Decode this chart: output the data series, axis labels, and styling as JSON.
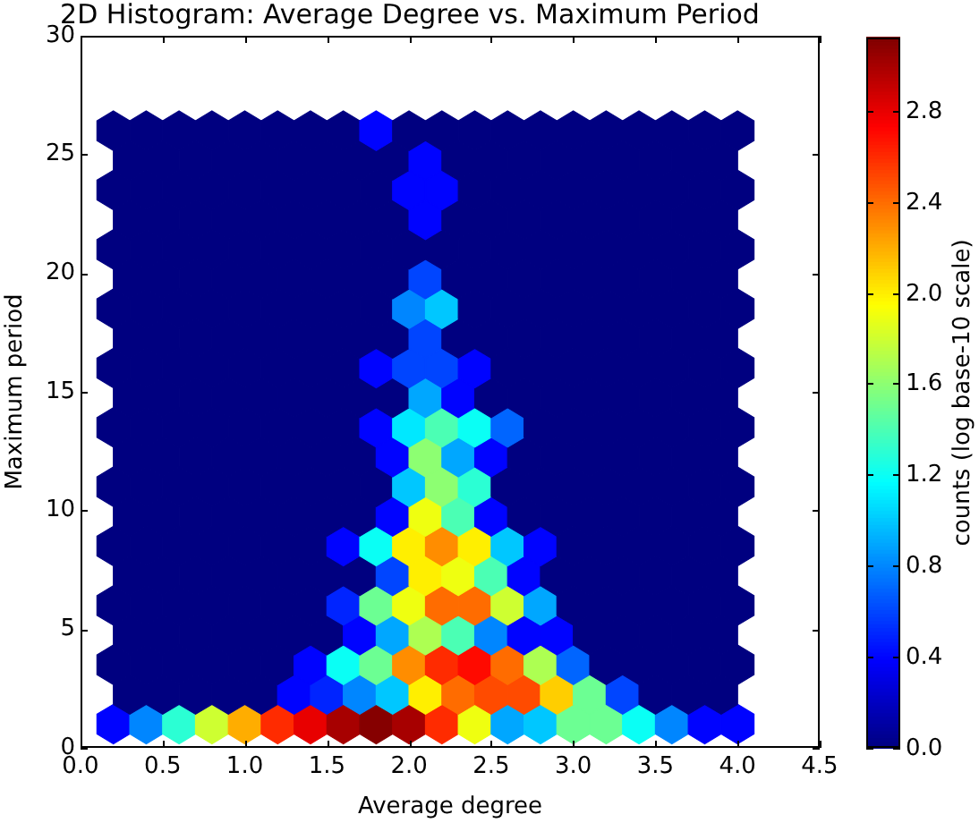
{
  "chart_data": {
    "type": "scatter",
    "title": "2D Histogram: Average Degree vs. Maximum Period",
    "xlabel": "Average degree",
    "ylabel": "Maximum period",
    "clabel": "counts (log base-10 scale)",
    "xlim": [
      0,
      4.5
    ],
    "xticks": [
      {
        "value": 0,
        "label": "0.0"
      },
      {
        "value": 0.5,
        "label": "0.5"
      },
      {
        "value": 1,
        "label": "1.0"
      },
      {
        "value": 1.5,
        "label": "1.5"
      },
      {
        "value": 2,
        "label": "2.0"
      },
      {
        "value": 2.5,
        "label": "2.5"
      },
      {
        "value": 3,
        "label": "3.0"
      },
      {
        "value": 3.5,
        "label": "3.5"
      },
      {
        "value": 4,
        "label": "4.0"
      },
      {
        "value": 4.5,
        "label": "4.5"
      }
    ],
    "ylim": [
      0,
      30
    ],
    "yticks": [
      0,
      5,
      10,
      15,
      20,
      25,
      30
    ],
    "clim": [
      0,
      3.12
    ],
    "cticks": [
      {
        "value": 0,
        "label": "0.0"
      },
      {
        "value": 0.4,
        "label": "0.4"
      },
      {
        "value": 0.8,
        "label": "0.8"
      },
      {
        "value": 1.2,
        "label": "1.2"
      },
      {
        "value": 1.6,
        "label": "1.6"
      },
      {
        "value": 2,
        "label": "2.0"
      },
      {
        "value": 2.4,
        "label": "2.4"
      },
      {
        "value": 2.8,
        "label": "2.8"
      }
    ],
    "grid": false,
    "legend": false,
    "series": [
      {
        "x": [
          0.2,
          0.4,
          0.6,
          0.8,
          1.0,
          1.2,
          1.4,
          1.6,
          1.8,
          2.0,
          2.2,
          2.4,
          2.6,
          2.8,
          3.0,
          3.2,
          3.4,
          3.6,
          3.8,
          4.0
        ],
        "values": [
          1,
          1,
          1,
          1,
          1,
          1,
          1,
          1,
          1,
          1,
          1,
          1,
          1,
          1,
          1,
          1,
          1,
          1,
          1,
          1
        ],
        "cvalues": [
          0.4,
          0.8,
          1.3,
          1.8,
          2.2,
          2.6,
          2.8,
          3.0,
          3.1,
          3.0,
          2.6,
          1.9,
          0.9,
          1.0,
          1.5,
          1.5,
          1.2,
          0.8,
          0.4,
          0.4
        ],
        "colors": [
          "#0003ff",
          "#0086ff",
          "#2bffd4",
          "#ceff31",
          "#ffad00",
          "#ff2b00",
          "#e80000",
          "#a70000",
          "#860000",
          "#a70000",
          "#ff2b00",
          "#efff10",
          "#00a7ff",
          "#00c7ff",
          "#6cff93",
          "#6cff93",
          "#0afff5",
          "#0086ff",
          "#0003ff",
          "#0003ff"
        ]
      },
      {
        "x": [
          0.3,
          0.5,
          0.7,
          0.9,
          1.1,
          1.3,
          1.5,
          1.7,
          1.9,
          2.1,
          2.3,
          2.5,
          2.7,
          2.9,
          3.1,
          3.3,
          3.5,
          3.7,
          3.9
        ],
        "values": [
          2.25,
          2.25,
          2.25,
          2.25,
          2.25,
          2.25,
          2.25,
          2.25,
          2.25,
          2.25,
          2.25,
          2.25,
          2.25,
          2.25,
          2.25,
          2.25,
          2.25,
          2.25,
          2.25
        ],
        "cvalues": [
          0,
          0,
          0,
          0,
          0,
          0.4,
          0.5,
          0.8,
          1.0,
          2.0,
          2.4,
          2.5,
          2.5,
          2.1,
          1.5,
          0.6,
          0,
          0,
          0
        ],
        "colors": [
          "#000080",
          "#000080",
          "#000080",
          "#000080",
          "#000080",
          "#0003ff",
          "#0024ff",
          "#0086ff",
          "#00c7ff",
          "#ffef00",
          "#ff6c00",
          "#ff4b00",
          "#ff4b00",
          "#ffce00",
          "#6cff93",
          "#0045ff",
          "#000080",
          "#000080",
          "#000080"
        ]
      },
      {
        "x": [
          0.2,
          0.4,
          0.6,
          0.8,
          1.0,
          1.2,
          1.4,
          1.6,
          1.8,
          2.0,
          2.2,
          2.4,
          2.6,
          2.8,
          3.0,
          3.2,
          3.4,
          3.6,
          3.8,
          4.0
        ],
        "values": [
          3.5,
          3.5,
          3.5,
          3.5,
          3.5,
          3.5,
          3.5,
          3.5,
          3.5,
          3.5,
          3.5,
          3.5,
          3.5,
          3.5,
          3.5,
          3.5,
          3.5,
          3.5,
          3.5,
          3.5
        ],
        "cvalues": [
          0,
          0,
          0,
          0,
          0,
          0,
          0.4,
          1.2,
          1.5,
          2.3,
          2.6,
          2.7,
          2.4,
          1.7,
          0.7,
          0,
          0,
          0,
          0,
          0
        ],
        "colors": [
          "#000080",
          "#000080",
          "#000080",
          "#000080",
          "#000080",
          "#000080",
          "#0003ff",
          "#0afff5",
          "#6cff93",
          "#ff8d00",
          "#ff2b00",
          "#ff0a00",
          "#ff6c00",
          "#adff52",
          "#0065ff",
          "#000080",
          "#000080",
          "#000080",
          "#000080",
          "#000080"
        ]
      },
      {
        "x": [
          0.3,
          0.5,
          0.7,
          0.9,
          1.1,
          1.3,
          1.5,
          1.7,
          1.9,
          2.1,
          2.3,
          2.5,
          2.7,
          2.9,
          3.1,
          3.3,
          3.5,
          3.7,
          3.9
        ],
        "values": [
          4.75,
          4.75,
          4.75,
          4.75,
          4.75,
          4.75,
          4.75,
          4.75,
          4.75,
          4.75,
          4.75,
          4.75,
          4.75,
          4.75,
          4.75,
          4.75,
          4.75,
          4.75,
          4.75
        ],
        "cvalues": [
          0,
          0,
          0,
          0,
          0,
          0,
          0,
          0.4,
          0.9,
          1.7,
          1.4,
          0.8,
          0.4,
          0.4,
          0,
          0,
          0,
          0,
          0
        ],
        "colors": [
          "#000080",
          "#000080",
          "#000080",
          "#000080",
          "#000080",
          "#000080",
          "#000080",
          "#0003ff",
          "#00a7ff",
          "#adff52",
          "#4bffb4",
          "#0086ff",
          "#0003ff",
          "#0003ff",
          "#000080",
          "#000080",
          "#000080",
          "#000080",
          "#000080"
        ]
      },
      {
        "x": [
          0.2,
          0.4,
          0.6,
          0.8,
          1.0,
          1.2,
          1.4,
          1.6,
          1.8,
          2.0,
          2.2,
          2.4,
          2.6,
          2.8,
          3.0,
          3.2,
          3.4,
          3.6,
          3.8,
          4.0
        ],
        "values": [
          6,
          6,
          6,
          6,
          6,
          6,
          6,
          6,
          6,
          6,
          6,
          6,
          6,
          6,
          6,
          6,
          6,
          6,
          6,
          6
        ],
        "cvalues": [
          0,
          0,
          0,
          0,
          0,
          0,
          0,
          0.5,
          1.5,
          1.9,
          2.4,
          2.4,
          1.8,
          0.9,
          0,
          0,
          0,
          0,
          0,
          0
        ],
        "colors": [
          "#000080",
          "#000080",
          "#000080",
          "#000080",
          "#000080",
          "#000080",
          "#000080",
          "#0024ff",
          "#6cff93",
          "#efff10",
          "#ff6c00",
          "#ff6c00",
          "#ceff31",
          "#00a7ff",
          "#000080",
          "#000080",
          "#000080",
          "#000080",
          "#000080",
          "#000080"
        ]
      },
      {
        "x": [
          0.3,
          0.5,
          0.7,
          0.9,
          1.1,
          1.3,
          1.5,
          1.7,
          1.9,
          2.1,
          2.3,
          2.5,
          2.7,
          2.9,
          3.1,
          3.3,
          3.5,
          3.7,
          3.9
        ],
        "values": [
          7.25,
          7.25,
          7.25,
          7.25,
          7.25,
          7.25,
          7.25,
          7.25,
          7.25,
          7.25,
          7.25,
          7.25,
          7.25,
          7.25,
          7.25,
          7.25,
          7.25,
          7.25,
          7.25
        ],
        "cvalues": [
          0,
          0,
          0,
          0,
          0,
          0,
          0,
          0,
          0.6,
          2.0,
          1.9,
          1.4,
          0.4,
          0,
          0,
          0,
          0,
          0,
          0
        ],
        "colors": [
          "#000080",
          "#000080",
          "#000080",
          "#000080",
          "#000080",
          "#000080",
          "#000080",
          "#000080",
          "#0045ff",
          "#ffef00",
          "#efff10",
          "#4bffb4",
          "#0003ff",
          "#000080",
          "#000080",
          "#000080",
          "#000080",
          "#000080",
          "#000080"
        ]
      },
      {
        "x": [
          0.2,
          0.4,
          0.6,
          0.8,
          1.0,
          1.2,
          1.4,
          1.6,
          1.8,
          2.0,
          2.2,
          2.4,
          2.6,
          2.8,
          3.0,
          3.2,
          3.4,
          3.6,
          3.8,
          4.0
        ],
        "values": [
          8.5,
          8.5,
          8.5,
          8.5,
          8.5,
          8.5,
          8.5,
          8.5,
          8.5,
          8.5,
          8.5,
          8.5,
          8.5,
          8.5,
          8.5,
          8.5,
          8.5,
          8.5,
          8.5,
          8.5
        ],
        "cvalues": [
          0,
          0,
          0,
          0,
          0,
          0,
          0,
          0.4,
          1.2,
          2.0,
          2.3,
          2.0,
          1.0,
          0.4,
          0,
          0,
          0,
          0,
          0,
          0
        ],
        "colors": [
          "#000080",
          "#000080",
          "#000080",
          "#000080",
          "#000080",
          "#000080",
          "#000080",
          "#0003ff",
          "#0afff5",
          "#ffef00",
          "#ff8d00",
          "#ffef00",
          "#00c7ff",
          "#0003ff",
          "#000080",
          "#000080",
          "#000080",
          "#000080",
          "#000080",
          "#000080"
        ]
      },
      {
        "x": [
          0.3,
          0.5,
          0.7,
          0.9,
          1.1,
          1.3,
          1.5,
          1.7,
          1.9,
          2.1,
          2.3,
          2.5,
          2.7,
          2.9,
          3.1,
          3.3,
          3.5,
          3.7,
          3.9
        ],
        "values": [
          9.75,
          9.75,
          9.75,
          9.75,
          9.75,
          9.75,
          9.75,
          9.75,
          9.75,
          9.75,
          9.75,
          9.75,
          9.75,
          9.75,
          9.75,
          9.75,
          9.75,
          9.75,
          9.75
        ],
        "cvalues": [
          0,
          0,
          0,
          0,
          0,
          0,
          0,
          0,
          0.4,
          1.9,
          1.4,
          0.4,
          0,
          0,
          0,
          0,
          0,
          0,
          0
        ],
        "colors": [
          "#000080",
          "#000080",
          "#000080",
          "#000080",
          "#000080",
          "#000080",
          "#000080",
          "#000080",
          "#0003ff",
          "#efff10",
          "#4bffb4",
          "#0003ff",
          "#000080",
          "#000080",
          "#000080",
          "#000080",
          "#000080",
          "#000080",
          "#000080"
        ]
      },
      {
        "x": [
          0.2,
          0.4,
          0.6,
          0.8,
          1.0,
          1.2,
          1.4,
          1.6,
          1.8,
          2.0,
          2.2,
          2.4,
          2.6,
          2.8,
          3.0,
          3.2,
          3.4,
          3.6,
          3.8,
          4.0
        ],
        "values": [
          11,
          11,
          11,
          11,
          11,
          11,
          11,
          11,
          11,
          11,
          11,
          11,
          11,
          11,
          11,
          11,
          11,
          11,
          11,
          11
        ],
        "cvalues": [
          0,
          0,
          0,
          0,
          0,
          0,
          0,
          0,
          0,
          1.0,
          1.6,
          1.3,
          0,
          0,
          0,
          0,
          0,
          0,
          0,
          0
        ],
        "colors": [
          "#000080",
          "#000080",
          "#000080",
          "#000080",
          "#000080",
          "#000080",
          "#000080",
          "#000080",
          "#000080",
          "#00c7ff",
          "#8dff72",
          "#2bffd4",
          "#000080",
          "#000080",
          "#000080",
          "#000080",
          "#000080",
          "#000080",
          "#000080",
          "#000080"
        ]
      },
      {
        "x": [
          0.3,
          0.5,
          0.7,
          0.9,
          1.1,
          1.3,
          1.5,
          1.7,
          1.9,
          2.1,
          2.3,
          2.5,
          2.7,
          2.9,
          3.1,
          3.3,
          3.5,
          3.7,
          3.9
        ],
        "values": [
          12.25,
          12.25,
          12.25,
          12.25,
          12.25,
          12.25,
          12.25,
          12.25,
          12.25,
          12.25,
          12.25,
          12.25,
          12.25,
          12.25,
          12.25,
          12.25,
          12.25,
          12.25,
          12.25
        ],
        "cvalues": [
          0,
          0,
          0,
          0,
          0,
          0,
          0,
          0,
          0.4,
          1.6,
          0.9,
          0.4,
          0,
          0,
          0,
          0,
          0,
          0,
          0
        ],
        "colors": [
          "#000080",
          "#000080",
          "#000080",
          "#000080",
          "#000080",
          "#000080",
          "#000080",
          "#000080",
          "#0003ff",
          "#8dff72",
          "#00a7ff",
          "#0003ff",
          "#000080",
          "#000080",
          "#000080",
          "#000080",
          "#000080",
          "#000080",
          "#000080"
        ]
      },
      {
        "x": [
          0.2,
          0.4,
          0.6,
          0.8,
          1.0,
          1.2,
          1.4,
          1.6,
          1.8,
          2.0,
          2.2,
          2.4,
          2.6,
          2.8,
          3.0,
          3.2,
          3.4,
          3.6,
          3.8,
          4.0
        ],
        "values": [
          13.5,
          13.5,
          13.5,
          13.5,
          13.5,
          13.5,
          13.5,
          13.5,
          13.5,
          13.5,
          13.5,
          13.5,
          13.5,
          13.5,
          13.5,
          13.5,
          13.5,
          13.5,
          13.5,
          13.5
        ],
        "cvalues": [
          0,
          0,
          0,
          0,
          0,
          0,
          0,
          0,
          0.4,
          1.1,
          1.4,
          1.2,
          0.7,
          0,
          0,
          0,
          0,
          0,
          0,
          0
        ],
        "colors": [
          "#000080",
          "#000080",
          "#000080",
          "#000080",
          "#000080",
          "#000080",
          "#000080",
          "#000080",
          "#0003ff",
          "#00e8ff",
          "#4bffb4",
          "#0afff5",
          "#0065ff",
          "#000080",
          "#000080",
          "#000080",
          "#000080",
          "#000080",
          "#000080",
          "#000080"
        ]
      },
      {
        "x": [
          0.3,
          0.5,
          0.7,
          0.9,
          1.1,
          1.3,
          1.5,
          1.7,
          1.9,
          2.1,
          2.3,
          2.5,
          2.7,
          2.9,
          3.1,
          3.3,
          3.5,
          3.7,
          3.9
        ],
        "values": [
          14.75,
          14.75,
          14.75,
          14.75,
          14.75,
          14.75,
          14.75,
          14.75,
          14.75,
          14.75,
          14.75,
          14.75,
          14.75,
          14.75,
          14.75,
          14.75,
          14.75,
          14.75,
          14.75
        ],
        "cvalues": [
          0,
          0,
          0,
          0,
          0,
          0,
          0,
          0,
          0,
          0.9,
          0.4,
          0,
          0,
          0,
          0,
          0,
          0,
          0,
          0
        ],
        "colors": [
          "#000080",
          "#000080",
          "#000080",
          "#000080",
          "#000080",
          "#000080",
          "#000080",
          "#000080",
          "#000080",
          "#00a7ff",
          "#0003ff",
          "#000080",
          "#000080",
          "#000080",
          "#000080",
          "#000080",
          "#000080",
          "#000080",
          "#000080"
        ]
      },
      {
        "x": [
          0.2,
          0.4,
          0.6,
          0.8,
          1.0,
          1.2,
          1.4,
          1.6,
          1.8,
          2.0,
          2.2,
          2.4,
          2.6,
          2.8,
          3.0,
          3.2,
          3.4,
          3.6,
          3.8,
          4.0
        ],
        "values": [
          16,
          16,
          16,
          16,
          16,
          16,
          16,
          16,
          16,
          16,
          16,
          16,
          16,
          16,
          16,
          16,
          16,
          16,
          16,
          16
        ],
        "cvalues": [
          0,
          0,
          0,
          0,
          0,
          0,
          0,
          0,
          0.4,
          0.6,
          0.6,
          0.4,
          0,
          0,
          0,
          0,
          0,
          0,
          0,
          0
        ],
        "colors": [
          "#000080",
          "#000080",
          "#000080",
          "#000080",
          "#000080",
          "#000080",
          "#000080",
          "#000080",
          "#0003ff",
          "#0045ff",
          "#0045ff",
          "#0003ff",
          "#000080",
          "#000080",
          "#000080",
          "#000080",
          "#000080",
          "#000080",
          "#000080",
          "#000080"
        ]
      },
      {
        "x": [
          0.3,
          0.5,
          0.7,
          0.9,
          1.1,
          1.3,
          1.5,
          1.7,
          1.9,
          2.1,
          2.3,
          2.5,
          2.7,
          2.9,
          3.1,
          3.3,
          3.5,
          3.7,
          3.9
        ],
        "values": [
          17.25,
          17.25,
          17.25,
          17.25,
          17.25,
          17.25,
          17.25,
          17.25,
          17.25,
          17.25,
          17.25,
          17.25,
          17.25,
          17.25,
          17.25,
          17.25,
          17.25,
          17.25,
          17.25
        ],
        "cvalues": [
          0,
          0,
          0,
          0,
          0,
          0,
          0,
          0,
          0,
          0.6,
          0,
          0,
          0,
          0,
          0,
          0,
          0,
          0,
          0
        ],
        "colors": [
          "#000080",
          "#000080",
          "#000080",
          "#000080",
          "#000080",
          "#000080",
          "#000080",
          "#000080",
          "#000080",
          "#0045ff",
          "#000080",
          "#000080",
          "#000080",
          "#000080",
          "#000080",
          "#000080",
          "#000080",
          "#000080",
          "#000080"
        ]
      },
      {
        "x": [
          0.2,
          0.4,
          0.6,
          0.8,
          1.0,
          1.2,
          1.4,
          1.6,
          1.8,
          2.0,
          2.2,
          2.4,
          2.6,
          2.8,
          3.0,
          3.2,
          3.4,
          3.6,
          3.8,
          4.0
        ],
        "values": [
          18.5,
          18.5,
          18.5,
          18.5,
          18.5,
          18.5,
          18.5,
          18.5,
          18.5,
          18.5,
          18.5,
          18.5,
          18.5,
          18.5,
          18.5,
          18.5,
          18.5,
          18.5,
          18.5,
          18.5
        ],
        "cvalues": [
          0,
          0,
          0,
          0,
          0,
          0,
          0,
          0,
          0,
          0.8,
          1.0,
          0,
          0,
          0,
          0,
          0,
          0,
          0,
          0,
          0
        ],
        "colors": [
          "#000080",
          "#000080",
          "#000080",
          "#000080",
          "#000080",
          "#000080",
          "#000080",
          "#000080",
          "#000080",
          "#0086ff",
          "#00c7ff",
          "#000080",
          "#000080",
          "#000080",
          "#000080",
          "#000080",
          "#000080",
          "#000080",
          "#000080",
          "#000080"
        ]
      },
      {
        "x": [
          0.3,
          0.5,
          0.7,
          0.9,
          1.1,
          1.3,
          1.5,
          1.7,
          1.9,
          2.1,
          2.3,
          2.5,
          2.7,
          2.9,
          3.1,
          3.3,
          3.5,
          3.7,
          3.9
        ],
        "values": [
          19.75,
          19.75,
          19.75,
          19.75,
          19.75,
          19.75,
          19.75,
          19.75,
          19.75,
          19.75,
          19.75,
          19.75,
          19.75,
          19.75,
          19.75,
          19.75,
          19.75,
          19.75,
          19.75
        ],
        "cvalues": [
          0,
          0,
          0,
          0,
          0,
          0,
          0,
          0,
          0,
          0.6,
          0,
          0,
          0,
          0,
          0,
          0,
          0,
          0,
          0
        ],
        "colors": [
          "#000080",
          "#000080",
          "#000080",
          "#000080",
          "#000080",
          "#000080",
          "#000080",
          "#000080",
          "#000080",
          "#0045ff",
          "#000080",
          "#000080",
          "#000080",
          "#000080",
          "#000080",
          "#000080",
          "#000080",
          "#000080",
          "#000080"
        ]
      },
      {
        "x": [
          0.2,
          0.4,
          0.6,
          0.8,
          1.0,
          1.2,
          1.4,
          1.6,
          1.8,
          2.0,
          2.2,
          2.4,
          2.6,
          2.8,
          3.0,
          3.2,
          3.4,
          3.6,
          3.8,
          4.0
        ],
        "values": [
          21,
          21,
          21,
          21,
          21,
          21,
          21,
          21,
          21,
          21,
          21,
          21,
          21,
          21,
          21,
          21,
          21,
          21,
          21,
          21
        ],
        "cvalues": [
          0,
          0,
          0,
          0,
          0,
          0,
          0,
          0,
          0,
          0,
          0,
          0,
          0,
          0,
          0,
          0,
          0,
          0,
          0,
          0
        ],
        "color": "#000080"
      },
      {
        "x": [
          0.3,
          0.5,
          0.7,
          0.9,
          1.1,
          1.3,
          1.5,
          1.7,
          1.9,
          2.1,
          2.3,
          2.5,
          2.7,
          2.9,
          3.1,
          3.3,
          3.5,
          3.7,
          3.9
        ],
        "values": [
          22.25,
          22.25,
          22.25,
          22.25,
          22.25,
          22.25,
          22.25,
          22.25,
          22.25,
          22.25,
          22.25,
          22.25,
          22.25,
          22.25,
          22.25,
          22.25,
          22.25,
          22.25,
          22.25
        ],
        "cvalues": [
          0,
          0,
          0,
          0,
          0,
          0,
          0,
          0,
          0,
          0.4,
          0,
          0,
          0,
          0,
          0,
          0,
          0,
          0,
          0
        ],
        "colors": [
          "#000080",
          "#000080",
          "#000080",
          "#000080",
          "#000080",
          "#000080",
          "#000080",
          "#000080",
          "#000080",
          "#0003ff",
          "#000080",
          "#000080",
          "#000080",
          "#000080",
          "#000080",
          "#000080",
          "#000080",
          "#000080",
          "#000080"
        ]
      },
      {
        "x": [
          0.2,
          0.4,
          0.6,
          0.8,
          1.0,
          1.2,
          1.4,
          1.6,
          1.8,
          2.0,
          2.2,
          2.4,
          2.6,
          2.8,
          3.0,
          3.2,
          3.4,
          3.6,
          3.8,
          4.0
        ],
        "values": [
          23.5,
          23.5,
          23.5,
          23.5,
          23.5,
          23.5,
          23.5,
          23.5,
          23.5,
          23.5,
          23.5,
          23.5,
          23.5,
          23.5,
          23.5,
          23.5,
          23.5,
          23.5,
          23.5,
          23.5
        ],
        "cvalues": [
          0,
          0,
          0,
          0,
          0,
          0,
          0,
          0,
          0,
          0.4,
          0.4,
          0,
          0,
          0,
          0,
          0,
          0,
          0,
          0,
          0
        ],
        "colors": [
          "#000080",
          "#000080",
          "#000080",
          "#000080",
          "#000080",
          "#000080",
          "#000080",
          "#000080",
          "#000080",
          "#0003ff",
          "#0003ff",
          "#000080",
          "#000080",
          "#000080",
          "#000080",
          "#000080",
          "#000080",
          "#000080",
          "#000080",
          "#000080"
        ]
      },
      {
        "x": [
          0.3,
          0.5,
          0.7,
          0.9,
          1.1,
          1.3,
          1.5,
          1.7,
          1.9,
          2.1,
          2.3,
          2.5,
          2.7,
          2.9,
          3.1,
          3.3,
          3.5,
          3.7,
          3.9
        ],
        "values": [
          24.75,
          24.75,
          24.75,
          24.75,
          24.75,
          24.75,
          24.75,
          24.75,
          24.75,
          24.75,
          24.75,
          24.75,
          24.75,
          24.75,
          24.75,
          24.75,
          24.75,
          24.75,
          24.75
        ],
        "cvalues": [
          0,
          0,
          0,
          0,
          0,
          0,
          0,
          0,
          0,
          0.4,
          0,
          0,
          0,
          0,
          0,
          0,
          0,
          0,
          0
        ],
        "colors": [
          "#000080",
          "#000080",
          "#000080",
          "#000080",
          "#000080",
          "#000080",
          "#000080",
          "#000080",
          "#000080",
          "#0003ff",
          "#000080",
          "#000080",
          "#000080",
          "#000080",
          "#000080",
          "#000080",
          "#000080",
          "#000080",
          "#000080"
        ]
      },
      {
        "x": [
          0.2,
          0.4,
          0.6,
          0.8,
          1.0,
          1.2,
          1.4,
          1.6,
          1.8,
          2.0,
          2.2,
          2.4,
          2.6,
          2.8,
          3.0,
          3.2,
          3.4,
          3.6,
          3.8,
          4.0
        ],
        "values": [
          26,
          26,
          26,
          26,
          26,
          26,
          26,
          26,
          26,
          26,
          26,
          26,
          26,
          26,
          26,
          26,
          26,
          26,
          26,
          26
        ],
        "cvalues": [
          0,
          0,
          0,
          0,
          0,
          0,
          0,
          0,
          0.4,
          0,
          0,
          0,
          0,
          0,
          0,
          0,
          0,
          0,
          0,
          0
        ],
        "colors": [
          "#000080",
          "#000080",
          "#000080",
          "#000080",
          "#000080",
          "#000080",
          "#000080",
          "#000080",
          "#0003ff",
          "#000080",
          "#000080",
          "#000080",
          "#000080",
          "#000080",
          "#000080",
          "#000080",
          "#000080",
          "#000080",
          "#000080",
          "#000080"
        ]
      }
    ]
  }
}
